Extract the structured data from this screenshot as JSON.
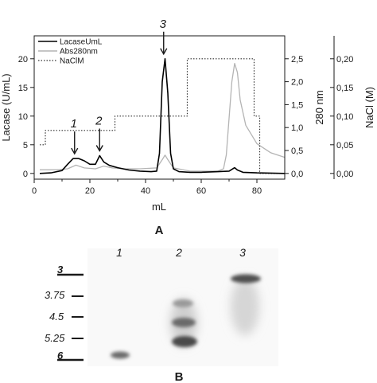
{
  "chart_data": [
    {
      "type": "line",
      "panel_label": "A",
      "xlabel": "mL",
      "xlim": [
        0,
        90
      ],
      "x_ticks": [
        0,
        20,
        40,
        60,
        80
      ],
      "x_tick_labels": [
        "0",
        "20",
        "40",
        "60",
        "80"
      ],
      "y_axes": [
        {
          "side": "left",
          "label": "Lacase (U/mL)",
          "ylim": [
            -1,
            24
          ],
          "ticks": [
            0,
            5,
            10,
            15,
            20
          ],
          "tick_labels": [
            "0",
            "5",
            "10",
            "15",
            "20"
          ]
        },
        {
          "side": "right",
          "label": "280 nm",
          "ylim": [
            -0.125,
            3.0
          ],
          "ticks": [
            0,
            0.5,
            1,
            1.5,
            2,
            2.5
          ],
          "tick_labels": [
            "0,0",
            "0,5",
            "1,0",
            "1,5",
            "2,0",
            "2,5"
          ]
        },
        {
          "side": "right",
          "label": "NaCl (M)",
          "ylim": [
            -0.01,
            0.24
          ],
          "ticks": [
            0,
            0.05,
            0.1,
            0.15,
            0.2
          ],
          "tick_labels": [
            "0,00",
            "0,05",
            "0,10",
            "0,15",
            "0,20"
          ]
        }
      ],
      "legend": {
        "position": "top-left",
        "entries": [
          "LacaseUmL",
          "Abs280nm",
          "NaClM"
        ]
      },
      "series": [
        {
          "name": "LacaseUmL",
          "axis": "left",
          "color": "#000000",
          "style": "solid",
          "x": [
            2,
            6,
            10,
            12,
            14,
            16,
            18,
            20,
            22,
            23.5,
            25,
            27,
            30,
            34,
            38,
            42,
            44,
            45,
            46,
            47,
            48,
            49,
            50,
            52,
            56,
            60,
            66,
            70,
            72,
            73,
            75,
            80,
            85,
            90
          ],
          "y": [
            0,
            0.1,
            0.5,
            1.6,
            2.6,
            2.6,
            2.2,
            1.6,
            1.6,
            3.1,
            2.0,
            1.4,
            1.0,
            0.6,
            0.4,
            0.3,
            0.4,
            3.5,
            16,
            20,
            14,
            3.5,
            0.8,
            0.3,
            0.2,
            0.2,
            0.3,
            0.4,
            1.0,
            0.6,
            0.2,
            0.1,
            0.05,
            0
          ]
        },
        {
          "name": "Abs280nm",
          "axis": "right-1",
          "color": "#b4b4b4",
          "style": "solid",
          "x": [
            2,
            8,
            12,
            15,
            18,
            22,
            25,
            28,
            32,
            38,
            44,
            46,
            47,
            48,
            50,
            56,
            62,
            66,
            68,
            69,
            70,
            71,
            72,
            73,
            74,
            76,
            80,
            85,
            90
          ],
          "y": [
            0.08,
            0.08,
            0.1,
            0.18,
            0.12,
            0.1,
            0.16,
            0.12,
            0.1,
            0.1,
            0.12,
            0.3,
            0.4,
            0.3,
            0.12,
            0.05,
            0.05,
            0.05,
            0.1,
            0.4,
            1.2,
            2.0,
            2.4,
            2.2,
            1.6,
            1.05,
            0.65,
            0.45,
            0.35
          ]
        },
        {
          "name": "NaClM",
          "axis": "right-2",
          "color": "#333333",
          "style": "dotted",
          "x": [
            2,
            4,
            4,
            29,
            29,
            55,
            55,
            79,
            79,
            81,
            81,
            90
          ],
          "y": [
            0.05,
            0.05,
            0.075,
            0.075,
            0.1,
            0.1,
            0.2,
            0.2,
            0.1,
            0.1,
            0,
            0
          ]
        }
      ],
      "annotations": [
        {
          "label": "1",
          "x": 14.5,
          "peak_y": 2.6
        },
        {
          "label": "2",
          "x": 23.5,
          "peak_y": 3.1
        },
        {
          "label": "3",
          "x": 46.5,
          "peak_y": 20
        }
      ]
    },
    {
      "type": "other",
      "panel_label": "B",
      "lane_labels": [
        "1",
        "2",
        "3"
      ],
      "ladder_labels": [
        "3",
        "3.75",
        "4.5",
        "5.25",
        "6"
      ]
    }
  ],
  "colors": {
    "background": "#ffffff",
    "axis": "#1a1a1a",
    "lacase_line": "#000000",
    "abs280_line": "#b4b4b4",
    "nacl_line": "#333333",
    "gel_band_dark": "#4a4a4a",
    "gel_band_light": "#c8c8c8"
  }
}
